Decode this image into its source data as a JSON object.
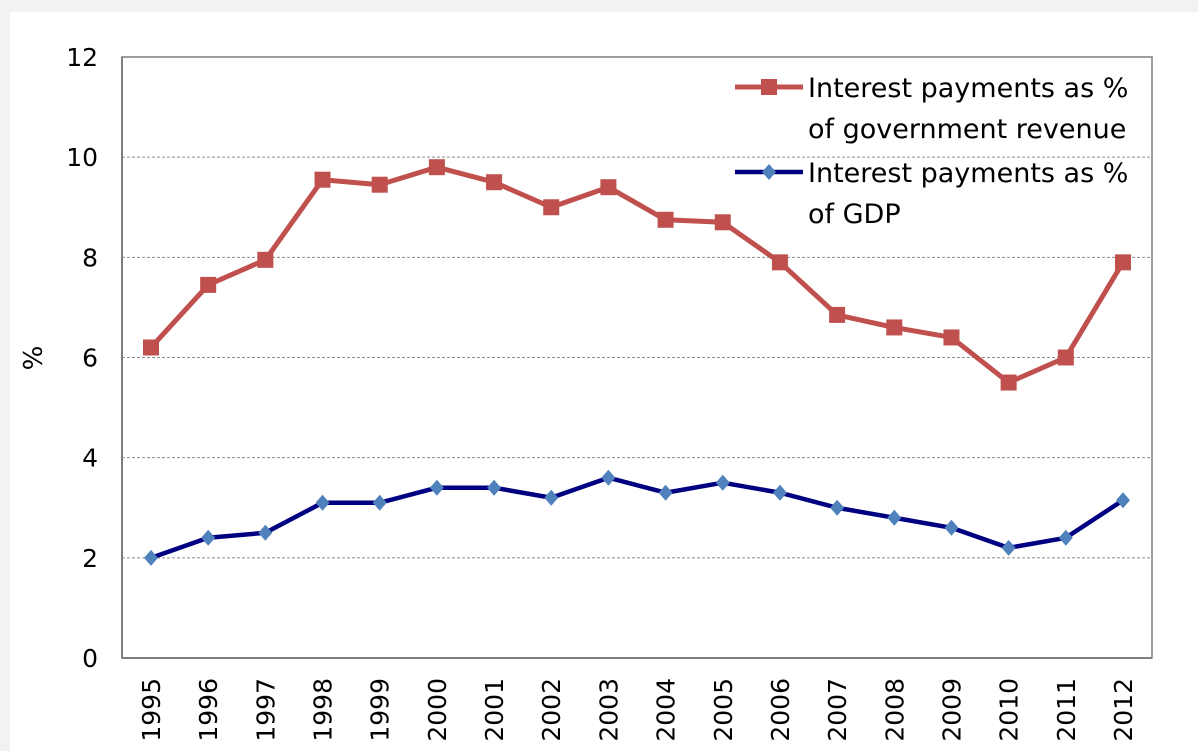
{
  "chart_data": {
    "type": "line",
    "title": "",
    "xlabel": "",
    "ylabel": "%",
    "ylim": [
      0,
      12
    ],
    "yticks": [
      0,
      2,
      4,
      6,
      8,
      10,
      12
    ],
    "grid": true,
    "legend_position": "top-right",
    "categories": [
      "1995",
      "1996",
      "1997",
      "1998",
      "1999",
      "2000",
      "2001",
      "2002",
      "2003",
      "2004",
      "2005",
      "2006",
      "2007",
      "2008",
      "2009",
      "2010",
      "2011",
      "2012"
    ],
    "series": [
      {
        "name_lines": [
          "Interest payments as %",
          "of government revenue"
        ],
        "color": "#c0504d",
        "marker": "square",
        "values": [
          6.2,
          7.45,
          7.95,
          9.55,
          9.45,
          9.8,
          9.5,
          9.0,
          9.4,
          8.75,
          8.7,
          7.9,
          6.85,
          6.6,
          6.4,
          5.5,
          6.0,
          7.9
        ]
      },
      {
        "name_lines": [
          "Interest payments as %",
          "of GDP"
        ],
        "color": "#000080",
        "marker": "diamond",
        "values": [
          2.0,
          2.4,
          2.5,
          3.1,
          3.1,
          3.4,
          3.4,
          3.2,
          3.6,
          3.3,
          3.5,
          3.3,
          3.0,
          2.8,
          2.6,
          2.2,
          2.4,
          3.15
        ]
      }
    ]
  }
}
